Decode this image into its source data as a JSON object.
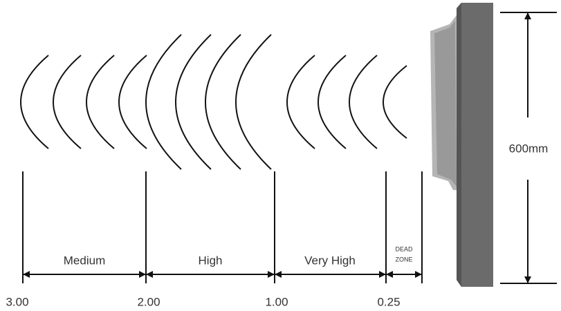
{
  "zones": [
    {
      "label": "Medium"
    },
    {
      "label": "High"
    },
    {
      "label": "Very High"
    },
    {
      "label": [
        "DEAD",
        "ZONE"
      ]
    }
  ],
  "distances": [
    "3.00",
    "2.00",
    "1.00",
    "0.25"
  ],
  "height_label": "600mm"
}
